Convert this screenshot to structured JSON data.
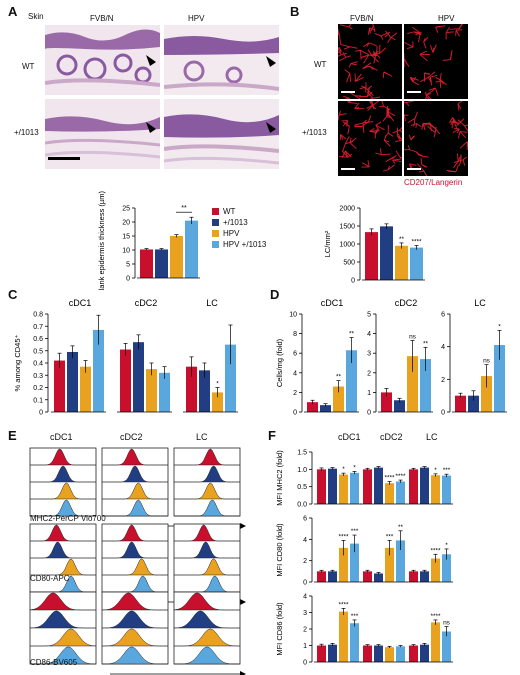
{
  "colors": {
    "wt": "#c8102e",
    "mut": "#223e82",
    "hpv": "#e8a21f",
    "hpvmut": "#5aa7dd",
    "cd207": "#e02030"
  },
  "panelA": {
    "label": "A",
    "tissue": "Skin",
    "col1": "FVB/N",
    "col2": "HPV",
    "row1": "WT",
    "row2": "+/1013",
    "chart": {
      "ylabel": "Flank epidermis thickness (µm)",
      "ylim": [
        0,
        25
      ],
      "yticks": [
        "0",
        "5",
        "10",
        "15",
        "20",
        "25"
      ],
      "values": [
        10.2,
        10.2,
        15,
        20.5
      ],
      "errors": [
        0.3,
        0.3,
        0.5,
        1.2
      ],
      "sig": "**",
      "legend": [
        "WT",
        "+/1013",
        "HPV",
        "HPV +/1013"
      ]
    }
  },
  "panelB": {
    "label": "B",
    "col1": "FVB/N",
    "col2": "HPV",
    "row1": "WT",
    "row2": "+/1013",
    "stain": "CD207/Langerin",
    "chart": {
      "ylabel": "LC/mm²",
      "ylim": [
        0,
        2000
      ],
      "yticks": [
        "0",
        "500",
        "1000",
        "1500",
        "2000"
      ],
      "values": [
        1330,
        1490,
        950,
        900
      ],
      "errors": [
        90,
        70,
        80,
        60
      ],
      "sig": [
        "",
        "",
        "**",
        "****"
      ]
    }
  },
  "panelC": {
    "label": "C",
    "ylabel": "% among CD45⁺",
    "ylim": [
      0,
      0.8
    ],
    "yticks": [
      "0",
      "0.1",
      "0.2",
      "0.3",
      "0.4",
      "0.5",
      "0.6",
      "0.7",
      "0.8"
    ],
    "groups": [
      {
        "title": "cDC1",
        "values": [
          0.42,
          0.49,
          0.37,
          0.67
        ],
        "errors": [
          0.06,
          0.05,
          0.05,
          0.12
        ],
        "sig": [
          "",
          "",
          "",
          ""
        ]
      },
      {
        "title": "cDC2",
        "values": [
          0.51,
          0.57,
          0.35,
          0.32
        ],
        "errors": [
          0.05,
          0.06,
          0.05,
          0.05
        ],
        "sig": [
          "",
          "",
          "",
          ""
        ]
      },
      {
        "title": "LC",
        "values": [
          0.37,
          0.34,
          0.16,
          0.55
        ],
        "errors": [
          0.08,
          0.06,
          0.04,
          0.16
        ],
        "sig": [
          "",
          "",
          "*",
          ""
        ]
      }
    ]
  },
  "panelD": {
    "label": "D",
    "ylabel": "Cells/mg (fold)",
    "groups": [
      {
        "title": "cDC1",
        "ylim": [
          0,
          10
        ],
        "yticks": [
          "0",
          "2",
          "4",
          "6",
          "8",
          "10"
        ],
        "values": [
          1,
          0.7,
          2.6,
          6.3
        ],
        "errors": [
          0.2,
          0.15,
          0.6,
          1.3
        ],
        "sig": [
          "",
          "",
          "**",
          "**"
        ]
      },
      {
        "title": "cDC2",
        "ylim": [
          0,
          5
        ],
        "yticks": [
          "0",
          "1",
          "2",
          "3",
          "4",
          "5"
        ],
        "values": [
          1,
          0.6,
          2.85,
          2.7
        ],
        "errors": [
          0.2,
          0.1,
          0.8,
          0.6
        ],
        "sig": [
          "",
          "",
          "ns",
          "**"
        ]
      },
      {
        "title": "LC",
        "ylim": [
          0,
          6
        ],
        "yticks": [
          "0",
          "2",
          "4",
          "6"
        ],
        "values": [
          1,
          1,
          2.2,
          4.1
        ],
        "errors": [
          0.15,
          0.3,
          0.7,
          0.9
        ],
        "sig": [
          "",
          "",
          "ns",
          "*"
        ]
      }
    ]
  },
  "panelE": {
    "label": "E",
    "cols": [
      "cDC1",
      "cDC2",
      "LC"
    ],
    "markers": [
      "MHC2-PerCP Vio700",
      "CD80-APC",
      "CD86-BV605"
    ]
  },
  "panelF": {
    "label": "F",
    "cols": [
      "cDC1",
      "cDC2",
      "LC"
    ],
    "plots": [
      {
        "ylabel": "MFI MHC2 (fold)",
        "ylim": [
          0,
          1.5
        ],
        "yticks": [
          "0.0",
          "0.5",
          "1.0",
          "1.5"
        ],
        "values": [
          [
            1,
            1.02,
            0.85,
            0.9
          ],
          [
            1,
            1.05,
            0.6,
            0.65
          ],
          [
            1,
            1.05,
            0.83,
            0.82
          ]
        ],
        "errors": [
          [
            0.04,
            0.03,
            0.04,
            0.04
          ],
          [
            0.03,
            0.03,
            0.05,
            0.04
          ],
          [
            0.03,
            0.03,
            0.04,
            0.04
          ]
        ],
        "sig": [
          [
            "",
            "",
            "*",
            "*"
          ],
          [
            "",
            "",
            "****",
            "****"
          ],
          [
            "",
            "",
            "*",
            "***"
          ]
        ]
      },
      {
        "ylabel": "MFI CD80 (fold)",
        "ylim": [
          0,
          6
        ],
        "yticks": [
          "0",
          "2",
          "4",
          "6"
        ],
        "values": [
          [
            1,
            1,
            3.2,
            3.6
          ],
          [
            1,
            0.8,
            3.2,
            3.9
          ],
          [
            1,
            1,
            2.2,
            2.6
          ]
        ],
        "errors": [
          [
            0.1,
            0.1,
            0.7,
            0.8
          ],
          [
            0.1,
            0.1,
            0.7,
            0.9
          ],
          [
            0.1,
            0.1,
            0.4,
            0.5
          ]
        ],
        "sig": [
          [
            "",
            "",
            "****",
            "***"
          ],
          [
            "",
            "",
            "***",
            "**"
          ],
          [
            "",
            "",
            "****",
            "*"
          ]
        ]
      },
      {
        "ylabel": "MFI CD86 (fold)",
        "ylim": [
          0,
          4
        ],
        "yticks": [
          "0",
          "1",
          "2",
          "3",
          "4"
        ],
        "values": [
          [
            1,
            1.05,
            3.05,
            2.35
          ],
          [
            1,
            1,
            0.9,
            0.95
          ],
          [
            1,
            1.05,
            2.4,
            1.85
          ]
        ],
        "errors": [
          [
            0.08,
            0.08,
            0.2,
            0.2
          ],
          [
            0.05,
            0.05,
            0.05,
            0.05
          ],
          [
            0.05,
            0.08,
            0.15,
            0.3
          ]
        ],
        "sig": [
          [
            "",
            "",
            "****",
            "***"
          ],
          [
            "",
            "",
            "",
            ""
          ],
          [
            "",
            "",
            "****",
            "ns"
          ]
        ]
      }
    ]
  },
  "chart_data": [
    {
      "type": "bar",
      "title": "",
      "categories": [
        "WT",
        "+/1013",
        "HPV",
        "HPV +/1013"
      ],
      "ylabel": "Flank epidermis thickness (µm)",
      "ylim": [
        0,
        25
      ],
      "values": [
        10.2,
        10.2,
        15,
        20.5
      ]
    },
    {
      "type": "bar",
      "title": "",
      "categories": [
        "WT",
        "+/1013",
        "HPV",
        "HPV +/1013"
      ],
      "ylabel": "LC/mm²",
      "ylim": [
        0,
        2000
      ],
      "values": [
        1330,
        1490,
        950,
        900
      ]
    },
    {
      "type": "bar",
      "title": "",
      "categories": [
        "cDC1",
        "cDC2",
        "LC"
      ],
      "ylabel": "% among CD45⁺",
      "ylim": [
        0,
        0.8
      ],
      "series": [
        {
          "name": "WT",
          "values": [
            0.42,
            0.51,
            0.37
          ]
        },
        {
          "name": "+/1013",
          "values": [
            0.49,
            0.57,
            0.34
          ]
        },
        {
          "name": "HPV",
          "values": [
            0.37,
            0.35,
            0.16
          ]
        },
        {
          "name": "HPV +/1013",
          "values": [
            0.67,
            0.32,
            0.55
          ]
        }
      ]
    },
    {
      "type": "bar",
      "title": "",
      "categories": [
        "cDC1",
        "cDC2",
        "LC"
      ],
      "ylabel": "Cells/mg (fold)",
      "series": [
        {
          "name": "WT",
          "values": [
            1,
            1,
            1
          ]
        },
        {
          "name": "+/1013",
          "values": [
            0.7,
            0.6,
            1
          ]
        },
        {
          "name": "HPV",
          "values": [
            2.6,
            2.85,
            2.2
          ]
        },
        {
          "name": "HPV +/1013",
          "values": [
            6.3,
            2.7,
            4.1
          ]
        }
      ]
    },
    {
      "type": "bar",
      "title": "",
      "categories": [
        "cDC1",
        "cDC2",
        "LC"
      ],
      "ylabel": "MFI MHC2 (fold)",
      "ylim": [
        0,
        1.5
      ],
      "series": [
        {
          "name": "WT",
          "values": [
            1,
            1,
            1
          ]
        },
        {
          "name": "+/1013",
          "values": [
            1.02,
            1.05,
            1.05
          ]
        },
        {
          "name": "HPV",
          "values": [
            0.85,
            0.6,
            0.83
          ]
        },
        {
          "name": "HPV +/1013",
          "values": [
            0.9,
            0.65,
            0.82
          ]
        }
      ]
    },
    {
      "type": "bar",
      "title": "",
      "categories": [
        "cDC1",
        "cDC2",
        "LC"
      ],
      "ylabel": "MFI CD80 (fold)",
      "ylim": [
        0,
        6
      ],
      "series": [
        {
          "name": "WT",
          "values": [
            1,
            1,
            1
          ]
        },
        {
          "name": "+/1013",
          "values": [
            1,
            0.8,
            1
          ]
        },
        {
          "name": "HPV",
          "values": [
            3.2,
            3.2,
            2.2
          ]
        },
        {
          "name": "HPV +/1013",
          "values": [
            3.6,
            3.9,
            2.6
          ]
        }
      ]
    },
    {
      "type": "bar",
      "title": "",
      "categories": [
        "cDC1",
        "cDC2",
        "LC"
      ],
      "ylabel": "MFI CD86 (fold)",
      "ylim": [
        0,
        4
      ],
      "series": [
        {
          "name": "WT",
          "values": [
            1,
            1,
            1
          ]
        },
        {
          "name": "+/1013",
          "values": [
            1.05,
            1,
            1.05
          ]
        },
        {
          "name": "HPV",
          "values": [
            3.05,
            0.9,
            2.4
          ]
        },
        {
          "name": "HPV +/1013",
          "values": [
            2.35,
            0.95,
            1.85
          ]
        }
      ]
    }
  ]
}
